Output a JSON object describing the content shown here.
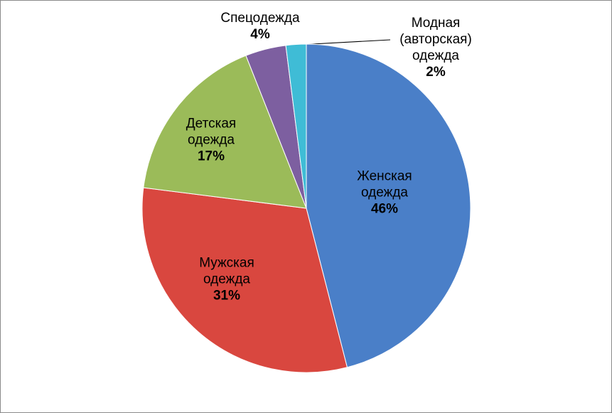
{
  "chart_data": {
    "type": "pie",
    "categories": [
      "Женская одежда",
      "Мужская одежда",
      "Детская одежда",
      "Спецодежда",
      "Модная (авторская) одежда"
    ],
    "values": [
      46,
      31,
      17,
      4,
      2
    ],
    "value_labels": [
      "46%",
      "31%",
      "17%",
      "4%",
      "2%"
    ],
    "colors": [
      "#4a7fc8",
      "#d9473f",
      "#9bbb59",
      "#7d5fa0",
      "#3fbcd6"
    ]
  }
}
